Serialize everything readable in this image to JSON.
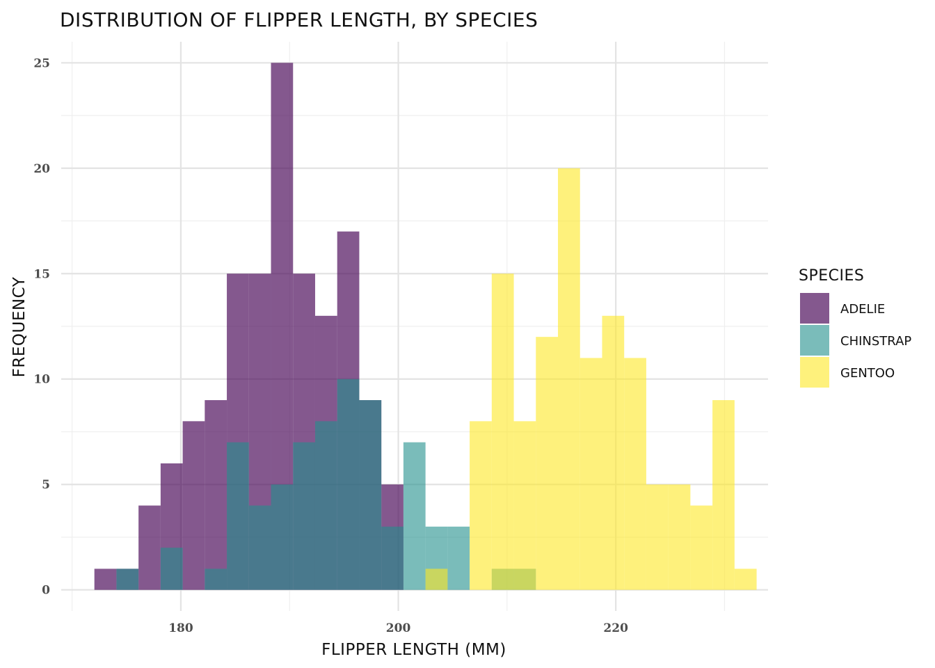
{
  "chart_data": {
    "type": "histogram",
    "title": "DISTRIBUTION OF FLIPPER LENGTH, BY SPECIES",
    "xlabel": "FLIPPER LENGTH (MM)",
    "ylabel": "FREQUENCY",
    "xlim": [
      169,
      234
    ],
    "ylim": [
      -1,
      26
    ],
    "xticks": [
      180,
      200,
      220
    ],
    "xminor": [
      170,
      190,
      210,
      230
    ],
    "yticks": [
      0,
      5,
      10,
      15,
      20,
      25
    ],
    "yminor": [
      2.5,
      7.5,
      12.5,
      17.5,
      22.5
    ],
    "grid": true,
    "bin_start": 172.05,
    "bin_width": 2.03,
    "legend": {
      "title": "SPECIES",
      "position": "right"
    },
    "series": [
      {
        "name": "ADELIE",
        "color": "#440154",
        "opacity": 0.66,
        "counts": [
          1,
          1,
          4,
          6,
          8,
          9,
          15,
          15,
          25,
          15,
          13,
          17,
          9,
          5
        ]
      },
      {
        "name": "CHINSTRAP",
        "color": "#21908C",
        "opacity": 0.6,
        "counts": [
          0,
          1,
          0,
          2,
          0,
          1,
          7,
          4,
          5,
          7,
          8,
          10,
          9,
          3,
          7,
          3,
          3,
          0,
          1,
          1
        ]
      },
      {
        "name": "GENTOO",
        "color": "#FDE725",
        "opacity": 0.6,
        "counts": [
          0,
          0,
          0,
          0,
          0,
          0,
          0,
          0,
          0,
          0,
          0,
          0,
          0,
          0,
          0,
          1,
          0,
          8,
          15,
          8,
          12,
          20,
          11,
          13,
          11,
          5,
          5,
          4,
          9,
          1
        ]
      }
    ]
  }
}
